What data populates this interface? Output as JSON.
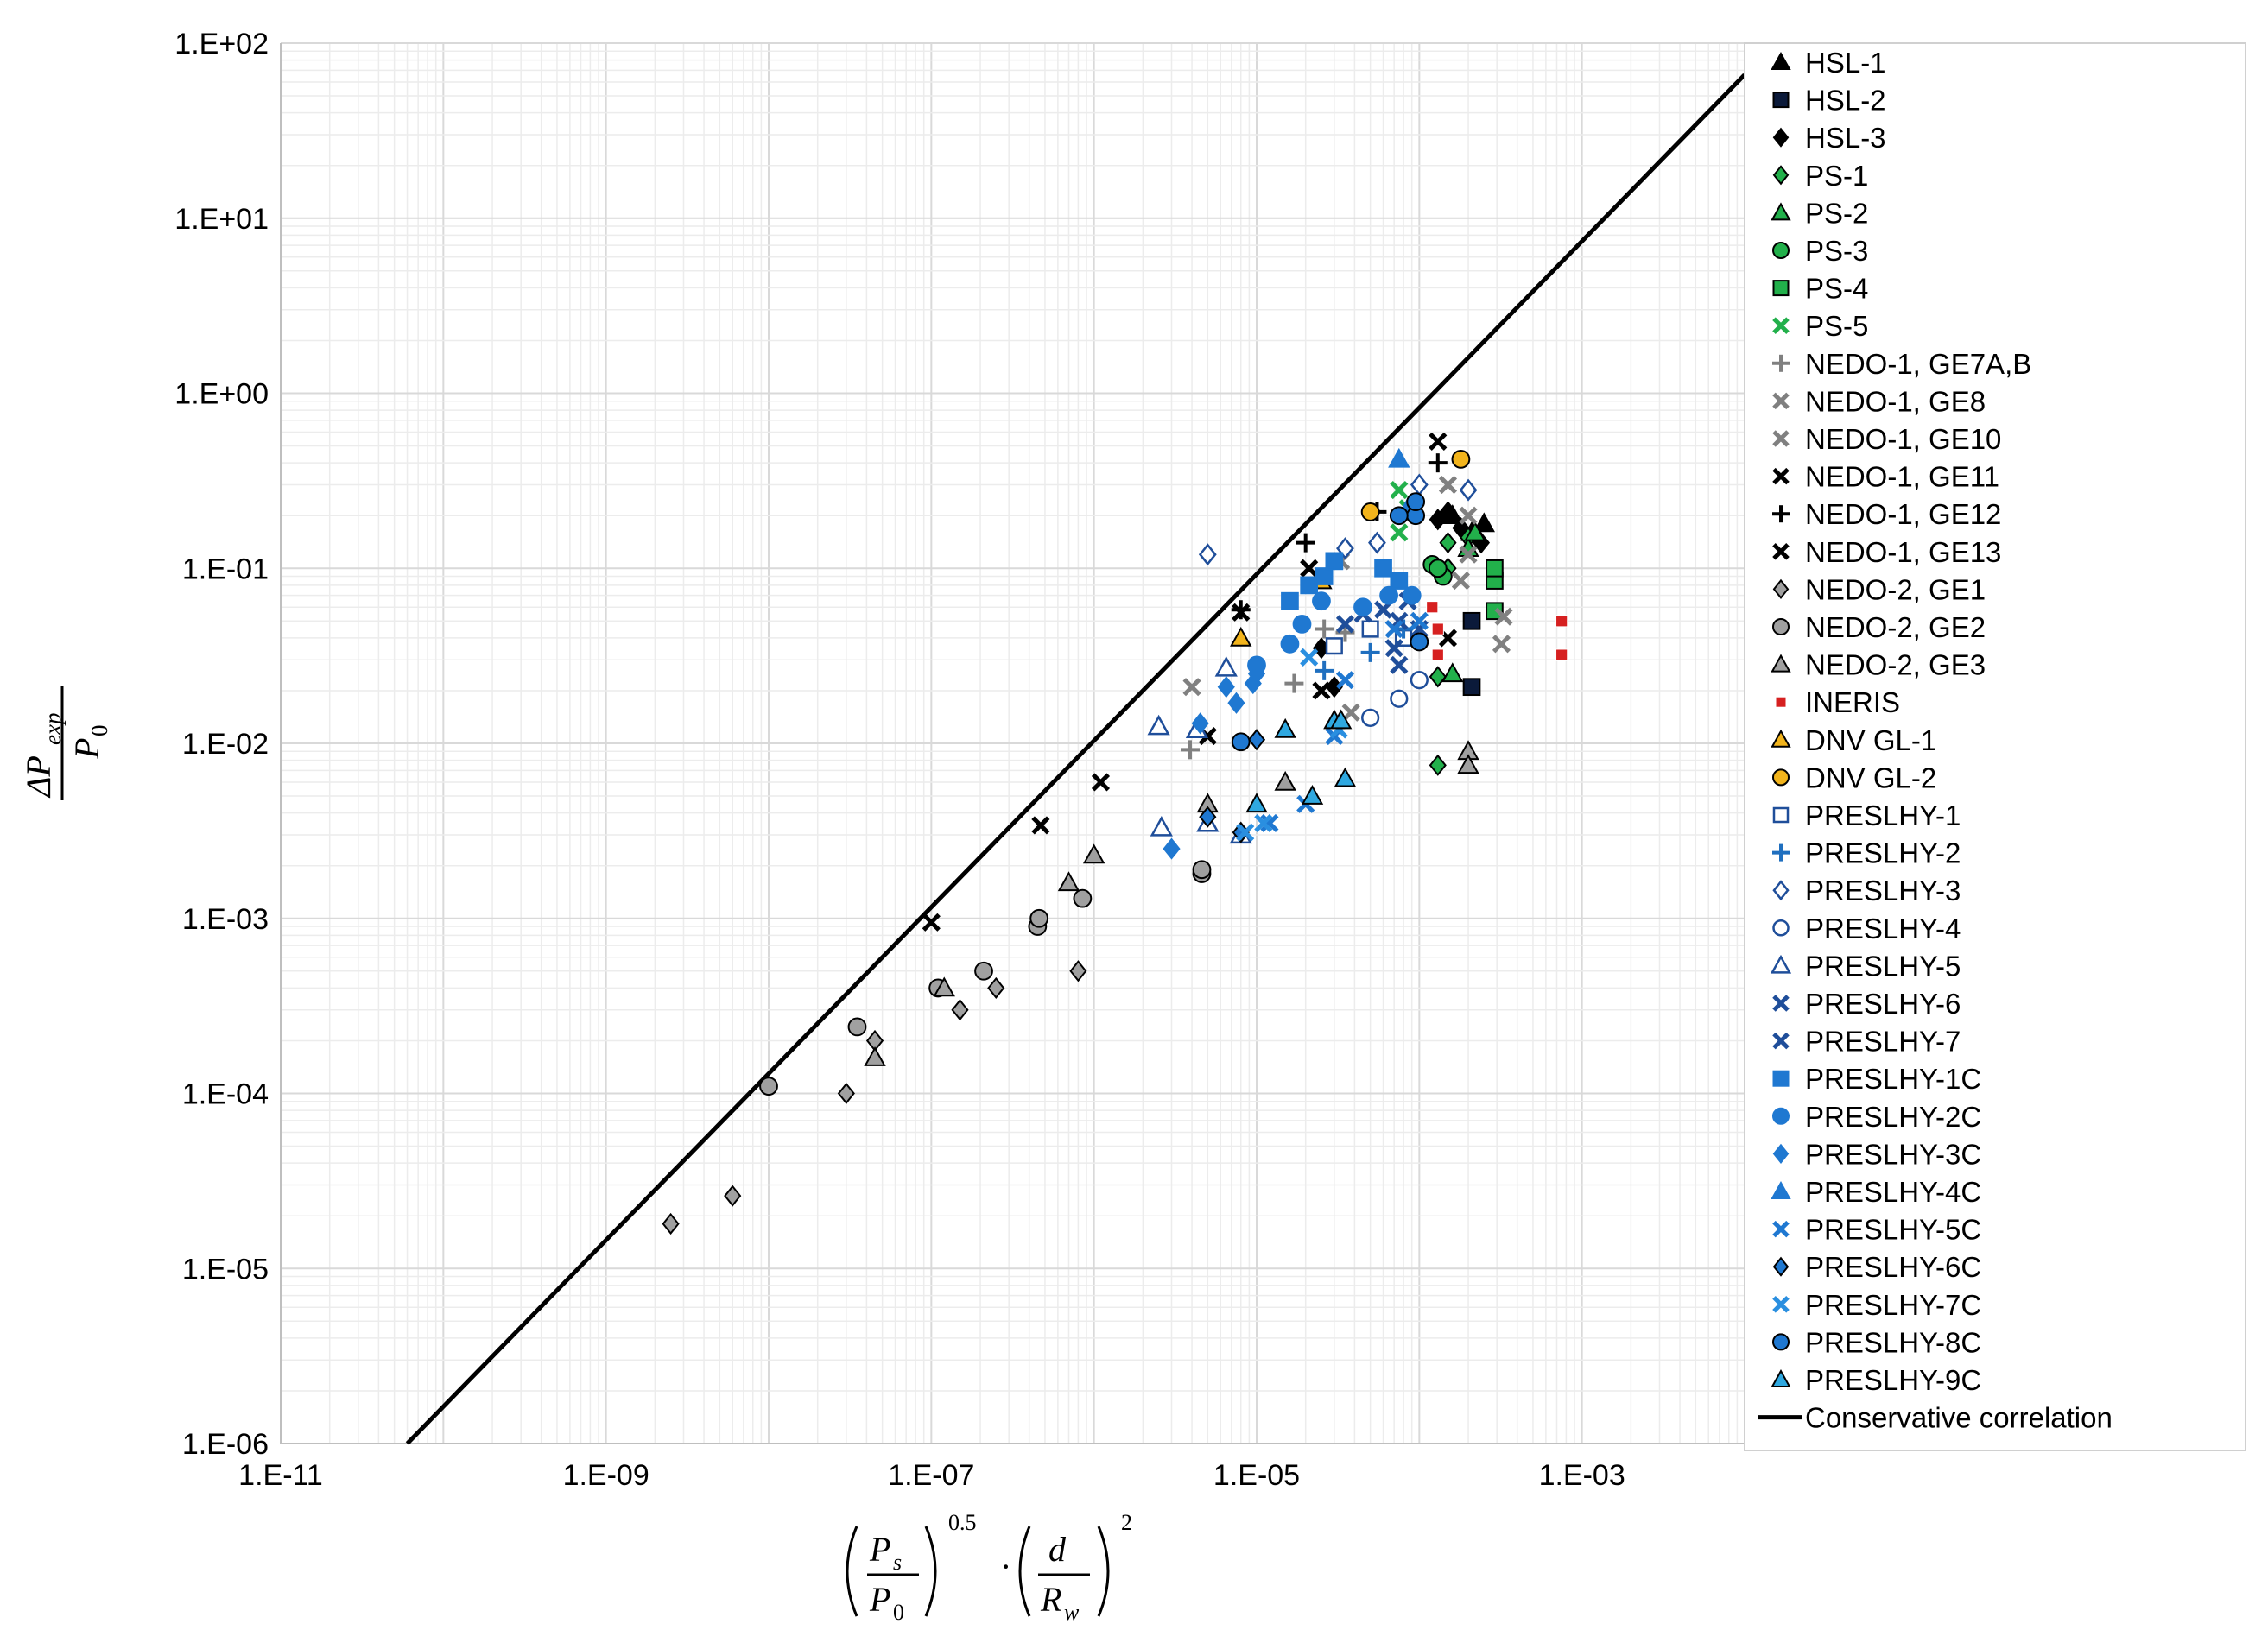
{
  "chart_data": {
    "type": "scatter",
    "title": "",
    "xscale": "log",
    "yscale": "log",
    "xlim": [
      1e-11,
      0.01
    ],
    "ylim": [
      1e-06,
      100
    ],
    "grid": true,
    "legend_position": "right",
    "xlabel": {
      "P_s": "P",
      "sub_s": "s",
      "P_0": "P",
      "sub_0": "0",
      "exponent1": "0.5",
      "dot": "·",
      "d": "d",
      "R_w": "R",
      "sub_w": "w",
      "exponent2": "2"
    },
    "ylabel": {
      "delta_p": "ΔP",
      "sub_exp": "exp",
      "P_0": "P",
      "sub_0": "0"
    },
    "xtick_labels": [
      "1.E-11",
      "1.E-09",
      "1.E-07",
      "1.E-05",
      "1.E-03"
    ],
    "xtick_values": [
      1e-11,
      1e-09,
      1e-07,
      1e-05,
      0.001
    ],
    "ytick_labels": [
      "1.E+02",
      "1.E+01",
      "1.E+00",
      "1.E-01",
      "1.E-02",
      "1.E-03",
      "1.E-04",
      "1.E-05",
      "1.E-06"
    ],
    "ytick_values": [
      100,
      10,
      1,
      0.1,
      0.01,
      0.001,
      0.0001,
      1e-05,
      1e-06
    ],
    "correlation": {
      "name": "Conservative correlation",
      "slope_loglog": 1.0,
      "x": [
        6e-11,
        0.01
      ],
      "y": [
        1e-06,
        66
      ],
      "color": "#000000"
    },
    "series": [
      {
        "name": "HSL-1",
        "marker": "triangle",
        "fill": "#000000",
        "stroke": "#000000",
        "points": [
          [
            0.00021,
            0.16
          ],
          [
            0.00025,
            0.18
          ],
          [
            0.00016,
            0.2
          ]
        ]
      },
      {
        "name": "HSL-2",
        "marker": "square",
        "fill": "#0b1a3a",
        "stroke": "#000000",
        "points": [
          [
            0.00021,
            0.021
          ],
          [
            0.00021,
            0.05
          ]
        ]
      },
      {
        "name": "HSL-3",
        "marker": "diamond",
        "fill": "#000000",
        "stroke": "#000000",
        "points": [
          [
            0.00015,
            0.21
          ],
          [
            0.00018,
            0.17
          ],
          [
            0.00024,
            0.14
          ],
          [
            0.00013,
            0.19
          ],
          [
            2.5e-05,
            0.035
          ],
          [
            3e-05,
            0.021
          ]
        ]
      },
      {
        "name": "PS-1",
        "marker": "diamond",
        "fill": "#22b04b",
        "stroke": "#000000",
        "points": [
          [
            0.00013,
            0.0075
          ],
          [
            0.00013,
            0.024
          ],
          [
            0.00015,
            0.1
          ],
          [
            0.00015,
            0.14
          ],
          [
            0.0002,
            0.15
          ]
        ]
      },
      {
        "name": "PS-2",
        "marker": "triangle",
        "fill": "#22b04b",
        "stroke": "#000000",
        "points": [
          [
            0.00016,
            0.025
          ],
          [
            0.0002,
            0.13
          ],
          [
            0.00022,
            0.16
          ]
        ]
      },
      {
        "name": "PS-3",
        "marker": "circle",
        "fill": "#22b04b",
        "stroke": "#000000",
        "points": [
          [
            0.00012,
            0.105
          ],
          [
            0.00014,
            0.09
          ],
          [
            0.00013,
            0.1
          ]
        ]
      },
      {
        "name": "PS-4",
        "marker": "square",
        "fill": "#22b04b",
        "stroke": "#000000",
        "points": [
          [
            0.00029,
            0.085
          ],
          [
            0.00029,
            0.1
          ],
          [
            0.00029,
            0.057
          ]
        ]
      },
      {
        "name": "PS-5",
        "marker": "x",
        "fill": "#22b04b",
        "stroke": "#22b04b",
        "points": [
          [
            7.5e-05,
            0.28
          ],
          [
            7.5e-05,
            0.16
          ],
          [
            8.5e-05,
            0.22
          ]
        ]
      },
      {
        "name": "NEDO-1, GE7A,B",
        "marker": "plus",
        "fill": "#808080",
        "stroke": "#808080",
        "points": [
          [
            3.9e-06,
            0.0092
          ],
          [
            1.7e-05,
            0.022
          ],
          [
            2.6e-05,
            0.045
          ],
          [
            3.5e-05,
            0.043
          ]
        ]
      },
      {
        "name": "NEDO-1, GE8",
        "marker": "x",
        "fill": "#808080",
        "stroke": "#808080",
        "points": [
          [
            4e-06,
            0.021
          ],
          [
            3.3e-05,
            0.11
          ],
          [
            0.00015,
            0.3
          ],
          [
            0.0002,
            0.2
          ]
        ]
      },
      {
        "name": "NEDO-1, GE10",
        "marker": "x",
        "fill": "#808080",
        "stroke": "#808080",
        "points": [
          [
            3.8e-05,
            0.015
          ],
          [
            0.00032,
            0.037
          ],
          [
            0.00033,
            0.053
          ],
          [
            0.0002,
            0.12
          ],
          [
            0.00018,
            0.085
          ]
        ]
      },
      {
        "name": "NEDO-1, GE11",
        "marker": "x",
        "fill": "#000000",
        "stroke": "#000000",
        "points": [
          [
            8e-06,
            0.056
          ],
          [
            2.1e-05,
            0.1
          ],
          [
            0.00013,
            0.53
          ]
        ]
      },
      {
        "name": "NEDO-1, GE12",
        "marker": "plus",
        "fill": "#000000",
        "stroke": "#000000",
        "points": [
          [
            8e-06,
            0.058
          ],
          [
            2e-05,
            0.14
          ],
          [
            0.00013,
            0.4
          ],
          [
            5.5e-05,
            0.21
          ]
        ]
      },
      {
        "name": "NEDO-1, GE13",
        "marker": "x",
        "fill": "#000000",
        "stroke": "#000000",
        "points": [
          [
            1e-07,
            0.00095
          ],
          [
            4.7e-07,
            0.0034
          ],
          [
            1.1e-06,
            0.006
          ],
          [
            5e-06,
            0.011
          ],
          [
            2.5e-05,
            0.02
          ],
          [
            0.00015,
            0.04
          ]
        ]
      },
      {
        "name": "NEDO-2, GE1",
        "marker": "diamond",
        "fill": "#a0a0a0",
        "stroke": "#000000",
        "points": [
          [
            2.5e-09,
            1.8e-05
          ],
          [
            6e-09,
            2.6e-05
          ],
          [
            3e-08,
            0.0001
          ],
          [
            4.5e-08,
            0.0002
          ],
          [
            1.5e-07,
            0.0003
          ],
          [
            2.5e-07,
            0.0004
          ],
          [
            8e-07,
            0.0005
          ]
        ]
      },
      {
        "name": "NEDO-2, GE2",
        "marker": "circle",
        "fill": "#a0a0a0",
        "stroke": "#000000",
        "points": [
          [
            1e-08,
            0.00011
          ],
          [
            3.5e-08,
            0.00024
          ],
          [
            1.1e-07,
            0.0004
          ],
          [
            2.1e-07,
            0.0005
          ],
          [
            4.5e-07,
            0.0009
          ],
          [
            4.6e-07,
            0.001
          ],
          [
            8.5e-07,
            0.0013
          ],
          [
            4.6e-06,
            0.0018
          ],
          [
            4.6e-06,
            0.0019
          ]
        ]
      },
      {
        "name": "NEDO-2, GE3",
        "marker": "triangle",
        "fill": "#a0a0a0",
        "stroke": "#000000",
        "points": [
          [
            4.5e-08,
            0.00016
          ],
          [
            1.2e-07,
            0.0004
          ],
          [
            7e-07,
            0.0016
          ],
          [
            1e-06,
            0.0023
          ],
          [
            5e-06,
            0.0045
          ],
          [
            1.5e-05,
            0.006
          ],
          [
            0.0002,
            0.009
          ],
          [
            0.0002,
            0.0075
          ]
        ]
      },
      {
        "name": "INERIS",
        "marker": "square-small",
        "fill": "#d62020",
        "stroke": "#ffffff",
        "points": [
          [
            0.00013,
            0.045
          ],
          [
            0.00013,
            0.032
          ],
          [
            0.00075,
            0.05
          ],
          [
            0.00075,
            0.032
          ],
          [
            0.00012,
            0.06
          ]
        ]
      },
      {
        "name": "DNV GL-1",
        "marker": "triangle",
        "fill": "#f2b41c",
        "stroke": "#000000",
        "points": [
          [
            8e-06,
            0.04
          ],
          [
            2.5e-05,
            0.085
          ]
        ]
      },
      {
        "name": "DNV GL-2",
        "marker": "circle",
        "fill": "#f2b41c",
        "stroke": "#000000",
        "points": [
          [
            5e-05,
            0.21
          ],
          [
            0.00018,
            0.42
          ]
        ]
      },
      {
        "name": "PRESLHY-1",
        "marker": "square-open",
        "fill": "none",
        "stroke": "#1f4e9a",
        "points": [
          [
            3e-05,
            0.036
          ],
          [
            5e-05,
            0.045
          ],
          [
            8e-05,
            0.04
          ]
        ]
      },
      {
        "name": "PRESLHY-2",
        "marker": "plus",
        "fill": "#1f6fbf",
        "stroke": "#1f6fbf",
        "points": [
          [
            2.6e-05,
            0.026
          ],
          [
            5e-05,
            0.033
          ],
          [
            8e-05,
            0.045
          ]
        ]
      },
      {
        "name": "PRESLHY-3",
        "marker": "diamond-open",
        "fill": "none",
        "stroke": "#1f4e9a",
        "points": [
          [
            3.5e-05,
            0.13
          ],
          [
            5.5e-05,
            0.14
          ],
          [
            0.0001,
            0.3
          ],
          [
            0.0002,
            0.28
          ],
          [
            5e-06,
            0.12
          ]
        ]
      },
      {
        "name": "PRESLHY-4",
        "marker": "circle-open",
        "fill": "none",
        "stroke": "#1f4e9a",
        "points": [
          [
            5e-05,
            0.014
          ],
          [
            7.5e-05,
            0.018
          ],
          [
            0.0001,
            0.023
          ]
        ]
      },
      {
        "name": "PRESLHY-5",
        "marker": "triangle-open",
        "fill": "none",
        "stroke": "#1f4e9a",
        "points": [
          [
            2.5e-06,
            0.0125
          ],
          [
            2.6e-06,
            0.0033
          ],
          [
            4.3e-06,
            0.012
          ],
          [
            6.5e-06,
            0.027
          ],
          [
            5e-06,
            0.0035
          ],
          [
            8e-06,
            0.003
          ]
        ]
      },
      {
        "name": "PRESLHY-6",
        "marker": "x",
        "fill": "#1f4e9a",
        "stroke": "#1f4e9a",
        "points": [
          [
            4.5e-05,
            0.055
          ],
          [
            7.5e-05,
            0.05
          ],
          [
            0.0001,
            0.045
          ],
          [
            7.5e-05,
            0.028
          ]
        ]
      },
      {
        "name": "PRESLHY-7",
        "marker": "x",
        "fill": "#1f4e9a",
        "stroke": "#1f4e9a",
        "points": [
          [
            3.5e-05,
            0.048
          ],
          [
            6e-05,
            0.058
          ],
          [
            8.5e-05,
            0.065
          ],
          [
            7e-05,
            0.035
          ]
        ]
      },
      {
        "name": "PRESLHY-1C",
        "marker": "square",
        "fill": "#1f78d1",
        "stroke": "#1f78d1",
        "points": [
          [
            1.6e-05,
            0.065
          ],
          [
            2.1e-05,
            0.08
          ],
          [
            2.6e-05,
            0.09
          ],
          [
            3e-05,
            0.11
          ],
          [
            6e-05,
            0.1
          ],
          [
            7.5e-05,
            0.085
          ]
        ]
      },
      {
        "name": "PRESLHY-2C",
        "marker": "circle",
        "fill": "#1f78d1",
        "stroke": "#1f78d1",
        "points": [
          [
            1.6e-05,
            0.037
          ],
          [
            1.9e-05,
            0.048
          ],
          [
            2.5e-05,
            0.065
          ],
          [
            4.5e-05,
            0.06
          ],
          [
            6.5e-05,
            0.07
          ],
          [
            9e-05,
            0.07
          ],
          [
            1e-05,
            0.028
          ]
        ]
      },
      {
        "name": "PRESLHY-3C",
        "marker": "diamond",
        "fill": "#1f78d1",
        "stroke": "#1f78d1",
        "points": [
          [
            3e-06,
            0.0025
          ],
          [
            4.5e-06,
            0.013
          ],
          [
            6.5e-06,
            0.021
          ],
          [
            7.5e-06,
            0.017
          ],
          [
            9.5e-06,
            0.022
          ],
          [
            1e-05,
            0.025
          ]
        ]
      },
      {
        "name": "PRESLHY-4C",
        "marker": "triangle",
        "fill": "#1f78d1",
        "stroke": "#1f78d1",
        "points": [
          [
            7.5e-05,
            0.42
          ],
          [
            8.5e-05,
            0.22
          ]
        ]
      },
      {
        "name": "PRESLHY-5C",
        "marker": "x",
        "fill": "#1f78d1",
        "stroke": "#1f78d1",
        "points": [
          [
            1.2e-05,
            0.0035
          ],
          [
            2e-05,
            0.0045
          ],
          [
            3e-05,
            0.011
          ],
          [
            3.5e-05,
            0.023
          ],
          [
            7e-05,
            0.045
          ],
          [
            0.0001,
            0.05
          ]
        ]
      },
      {
        "name": "PRESLHY-6C",
        "marker": "diamond",
        "fill": "#1f78d1",
        "stroke": "#000000",
        "points": [
          [
            5e-06,
            0.0038
          ],
          [
            8e-06,
            0.0031
          ],
          [
            1e-05,
            0.0105
          ]
        ]
      },
      {
        "name": "PRESLHY-7C",
        "marker": "x",
        "fill": "#2a8fe0",
        "stroke": "#2a8fe0",
        "points": [
          [
            8.5e-06,
            0.0031
          ],
          [
            1.1e-05,
            0.0035
          ],
          [
            2.1e-05,
            0.031
          ],
          [
            3.2e-05,
            0.012
          ]
        ]
      },
      {
        "name": "PRESLHY-8C",
        "marker": "circle",
        "fill": "#1f78d1",
        "stroke": "#000000",
        "points": [
          [
            8e-06,
            0.0102
          ],
          [
            9.5e-05,
            0.2
          ],
          [
            9.5e-05,
            0.24
          ],
          [
            0.0001,
            0.038
          ],
          [
            7.5e-05,
            0.2
          ]
        ]
      },
      {
        "name": "PRESLHY-9C",
        "marker": "triangle",
        "fill": "#2fa8e0",
        "stroke": "#000000",
        "points": [
          [
            1e-05,
            0.0045
          ],
          [
            1.5e-05,
            0.012
          ],
          [
            2.2e-05,
            0.005
          ],
          [
            3e-05,
            0.0135
          ],
          [
            3.3e-05,
            0.0135
          ],
          [
            3.5e-05,
            0.0063
          ]
        ]
      }
    ]
  }
}
